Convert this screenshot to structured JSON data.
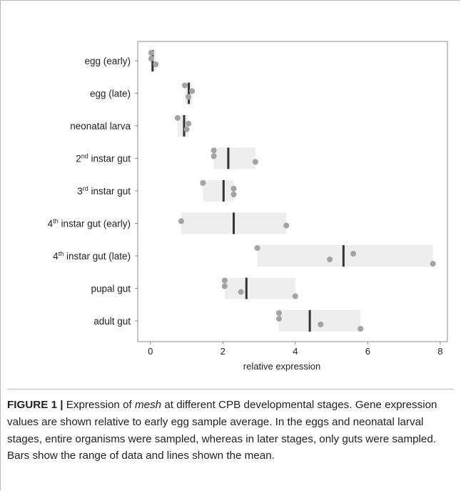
{
  "chart_data": {
    "type": "dot-range",
    "orientation": "horizontal",
    "xlabel": "relative expression",
    "xlim": [
      -0.35,
      8.2
    ],
    "xticks": [
      0,
      2,
      4,
      6,
      8
    ],
    "grid": false,
    "colors": {
      "points": "#a3a3a3",
      "range_bar": "#eeeeee",
      "mean_line": "#333333"
    },
    "categories": [
      {
        "label": "egg (early)",
        "sup": "",
        "base": "",
        "rest": "",
        "points": [
          0.02,
          0.02,
          0.15
        ],
        "range": [
          0.0,
          0.15
        ],
        "mean": 0.06
      },
      {
        "label": "egg (late)",
        "sup": "",
        "base": "",
        "rest": "",
        "points": [
          0.95,
          1.15,
          1.05
        ],
        "range": [
          0.95,
          1.15
        ],
        "mean": 1.06
      },
      {
        "label": "neonatal larva",
        "sup": "",
        "base": "",
        "rest": "",
        "points": [
          0.75,
          1.05,
          1.0
        ],
        "range": [
          0.75,
          1.05
        ],
        "mean": 0.93
      },
      {
        "label": "",
        "sup": "nd",
        "base": "2",
        "rest": " instar gut",
        "points": [
          1.75,
          1.75,
          2.9
        ],
        "range": [
          1.75,
          2.9
        ],
        "mean": 2.15
      },
      {
        "label": "",
        "sup": "rd",
        "base": "3",
        "rest": " instar gut",
        "points": [
          1.45,
          2.3,
          2.3
        ],
        "range": [
          1.45,
          2.3
        ],
        "mean": 2.02
      },
      {
        "label": "",
        "sup": "th",
        "base": "4",
        "rest": " instar gut (early)",
        "points": [
          0.85,
          3.75
        ],
        "range": [
          0.85,
          3.75
        ],
        "mean": 2.3
      },
      {
        "label": "",
        "sup": "th",
        "base": "4",
        "rest": " instar gut (late)",
        "points": [
          2.95,
          5.6,
          4.95,
          7.8
        ],
        "range": [
          2.95,
          7.8
        ],
        "mean": 5.33
      },
      {
        "label": "pupal gut",
        "sup": "",
        "base": "",
        "rest": "",
        "points": [
          2.05,
          2.05,
          2.5,
          4.0
        ],
        "range": [
          2.05,
          4.0
        ],
        "mean": 2.65
      },
      {
        "label": "adult gut",
        "sup": "",
        "base": "",
        "rest": "",
        "points": [
          3.55,
          3.55,
          4.7,
          5.8
        ],
        "range": [
          3.55,
          5.8
        ],
        "mean": 4.4
      }
    ]
  },
  "caption": {
    "label": "FIGURE 1 |",
    "text_before": " Expression of ",
    "gene": "mesh",
    "text_after": " at different CPB developmental stages. Gene expression values are shown relative to early egg sample average. In the eggs and neonatal larval stages, entire organisms were sampled, whereas in later stages, only guts were sampled. Bars show the range of data and lines shown the mean."
  }
}
